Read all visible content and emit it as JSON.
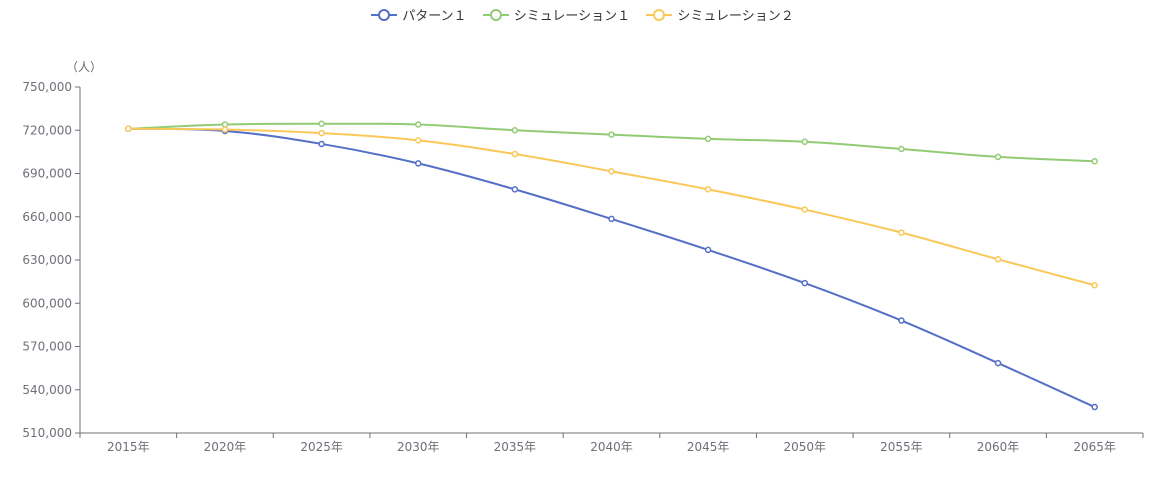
{
  "legend": {
    "items": [
      {
        "label": "パターン１",
        "color": "#5470c6"
      },
      {
        "label": "シミュレーション１",
        "color": "#91cc75"
      },
      {
        "label": "シミュレーション２",
        "color": "#fac858"
      }
    ]
  },
  "chart_data": {
    "type": "line",
    "ylabel": "（人）",
    "xlabel": "",
    "ylim": [
      510000,
      750000
    ],
    "yticks": [
      "750,000",
      "720,000",
      "690,000",
      "660,000",
      "630,000",
      "600,000",
      "570,000",
      "540,000",
      "510,000"
    ],
    "categories": [
      "2015年",
      "2020年",
      "2025年",
      "2030年",
      "2035年",
      "2040年",
      "2045年",
      "2050年",
      "2055年",
      "2060年",
      "2065年"
    ],
    "series": [
      {
        "name": "パターン１",
        "color": "#5470c6",
        "values": [
          721000,
          719500,
          710500,
          697000,
          679000,
          658500,
          637000,
          614000,
          588000,
          558500,
          528000
        ]
      },
      {
        "name": "シミュレーション１",
        "color": "#91cc75",
        "values": [
          721000,
          724000,
          724500,
          724000,
          720000,
          717000,
          714000,
          712000,
          707000,
          701500,
          698500
        ]
      },
      {
        "name": "シミュレーション２",
        "color": "#fac858",
        "values": [
          721000,
          720500,
          718000,
          713000,
          703500,
          691500,
          679000,
          665000,
          649000,
          630500,
          612500
        ]
      }
    ],
    "grid": false,
    "legend_position": "top-center"
  }
}
